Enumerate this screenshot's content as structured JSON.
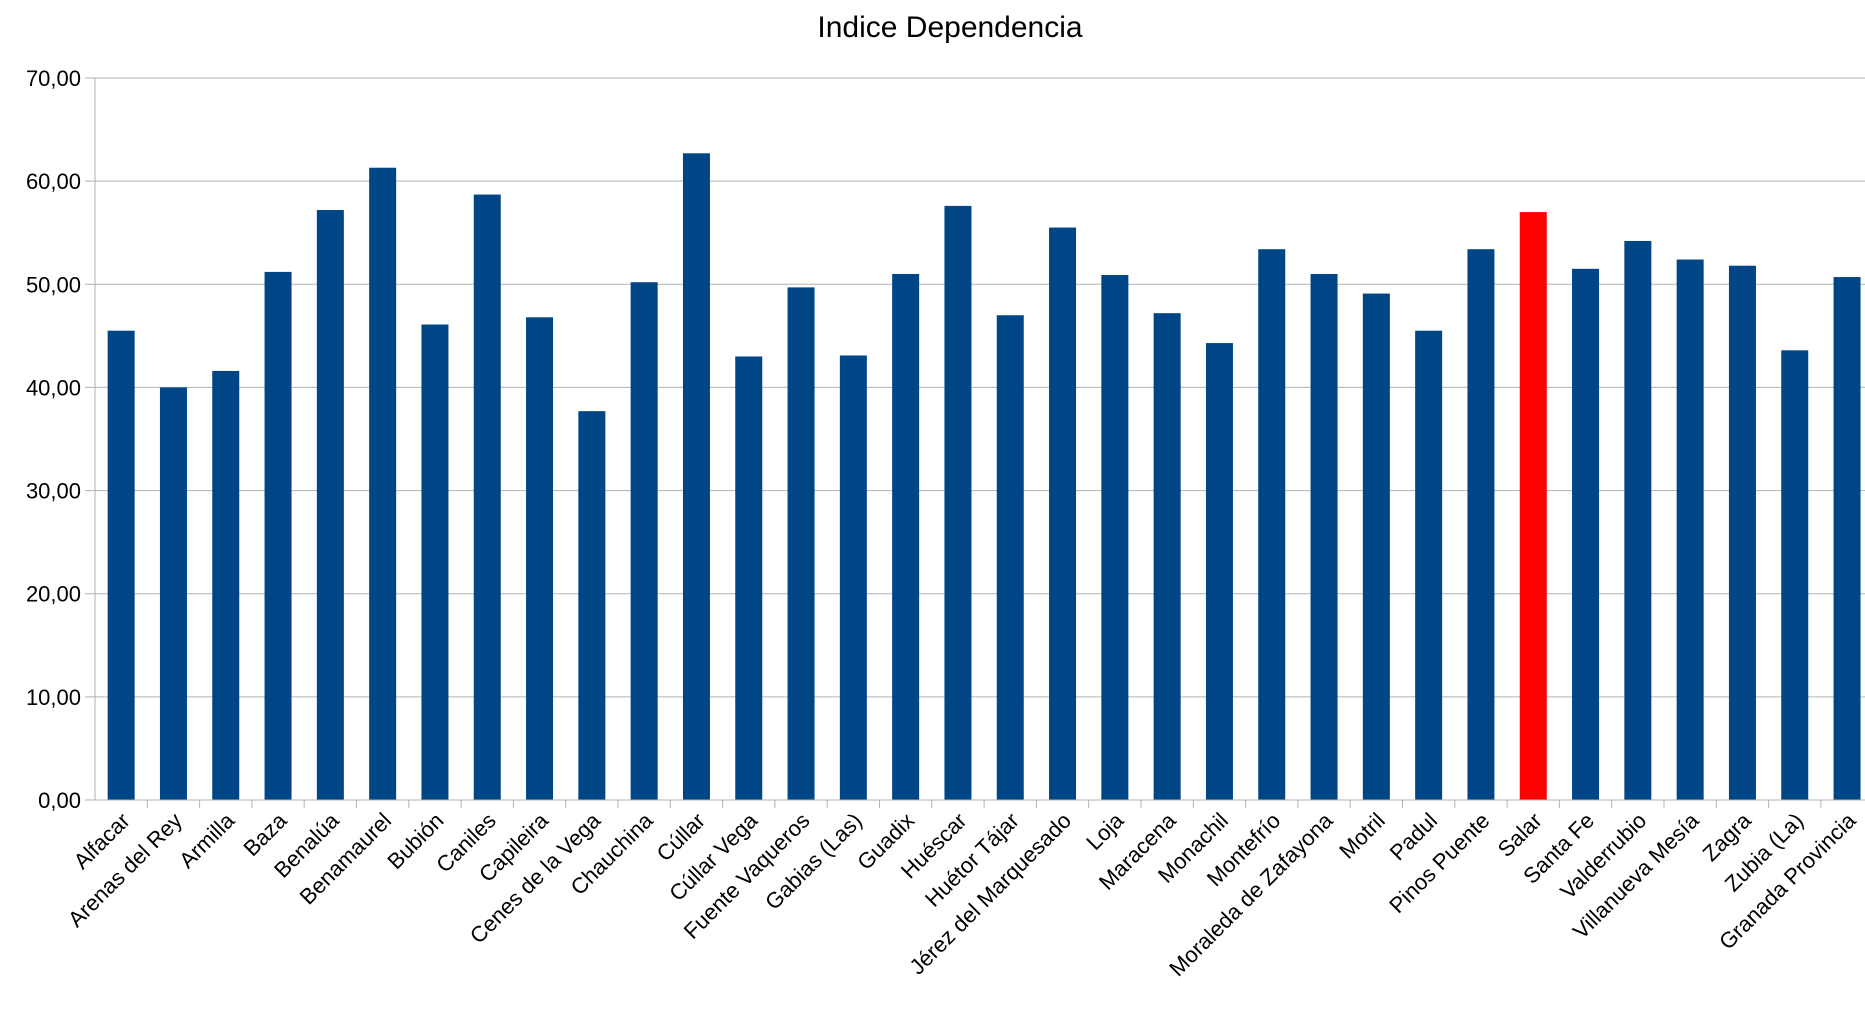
{
  "chart_data": {
    "type": "bar",
    "title": "Indice Dependencia",
    "xlabel": "",
    "ylabel": "",
    "ylim": [
      0,
      70
    ],
    "yticks": [
      "0,00",
      "10,00",
      "20,00",
      "30,00",
      "40,00",
      "50,00",
      "60,00",
      "70,00"
    ],
    "grid": true,
    "legend": "none",
    "categories": [
      "Alfacar",
      "Arenas del Rey",
      "Armilla",
      "Baza",
      "Benalúa",
      "Benamaurel",
      "Bubión",
      "Caniles",
      "Capileira",
      "Cenes de la Vega",
      "Chauchina",
      "Cúllar",
      "Cúllar Vega",
      "Fuente Vaqueros",
      "Gabias (Las)",
      "Guadix",
      "Huéscar",
      "Huétor Tájar",
      "Jérez del Marquesado",
      "Loja",
      "Maracena",
      "Monachil",
      "Montefrío",
      "Moraleda de Zafayona",
      "Motril",
      "Padul",
      "Pinos Puente",
      "Salar",
      "Santa Fe",
      "Valderrubio",
      "Villanueva Mesía",
      "Zagra",
      "Zubia (La)",
      "Granada Provincia"
    ],
    "values": [
      45.5,
      40.0,
      41.6,
      51.2,
      57.2,
      61.3,
      46.1,
      58.7,
      46.8,
      37.7,
      50.2,
      62.7,
      43.0,
      49.7,
      43.1,
      51.0,
      57.6,
      47.0,
      55.5,
      50.9,
      47.2,
      44.3,
      53.4,
      51.0,
      49.1,
      45.5,
      53.4,
      57.0,
      51.5,
      54.2,
      52.4,
      51.8,
      43.6,
      50.7
    ],
    "colors": {
      "default": "#004586",
      "highlight": "#ff0000"
    },
    "highlight_category": "Salar"
  }
}
